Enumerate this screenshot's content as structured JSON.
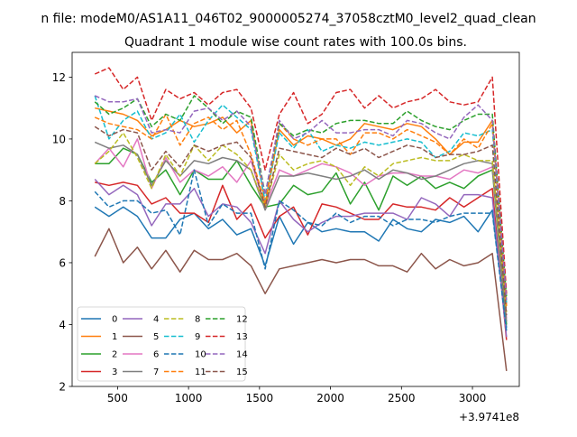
{
  "figure": {
    "suptitle": "n file: modeM0/AS1A11_046T02_9000005274_37058cztM0_level2_quad_clean",
    "title": "Quadrant 1 module wise count rates with 100.0s bins.",
    "offset_label": "+3.9741e8"
  },
  "chart_data": {
    "type": "line",
    "title": "Quadrant 1 module wise count rates with 100.0s bins.",
    "xlabel": "",
    "ylabel": "",
    "x_offset": 397410000,
    "x_offset_label": "+3.9741e8",
    "xlim": [
      180,
      3330
    ],
    "ylim": [
      2,
      12.8
    ],
    "xticks": [
      500,
      1000,
      1500,
      2000,
      2500,
      3000
    ],
    "yticks": [
      2,
      4,
      6,
      8,
      10,
      12
    ],
    "grid": false,
    "legend": {
      "placement": "lower-left",
      "ncol": 4
    },
    "x": [
      340,
      440,
      540,
      640,
      740,
      840,
      940,
      1040,
      1140,
      1240,
      1340,
      1440,
      1540,
      1640,
      1740,
      1840,
      1940,
      2040,
      2140,
      2240,
      2340,
      2440,
      2540,
      2640,
      2740,
      2840,
      2940,
      3040,
      3140,
      3240
    ],
    "series": [
      {
        "name": "0",
        "color": "#1f77b4",
        "dash": "solid",
        "values": [
          7.8,
          7.5,
          7.8,
          7.5,
          6.8,
          6.8,
          7.4,
          7.6,
          7.1,
          7.4,
          6.9,
          7.1,
          5.9,
          7.5,
          6.6,
          7.3,
          7.0,
          7.1,
          7.0,
          7.0,
          6.7,
          7.4,
          7.1,
          7.0,
          7.4,
          7.3,
          7.5,
          7.0,
          7.7,
          3.9
        ]
      },
      {
        "name": "1",
        "color": "#ff7f0e",
        "dash": "solid",
        "values": [
          11.0,
          10.9,
          10.8,
          10.6,
          10.1,
          10.3,
          10.6,
          10.4,
          10.5,
          10.7,
          10.2,
          10.6,
          7.9,
          10.3,
          9.8,
          10.1,
          10.0,
          9.8,
          10.0,
          10.5,
          10.4,
          10.3,
          10.5,
          10.4,
          10.0,
          9.5,
          9.9,
          9.9,
          10.6,
          4.6
        ]
      },
      {
        "name": "2",
        "color": "#2ca02c",
        "dash": "solid",
        "values": [
          9.2,
          9.2,
          9.7,
          9.5,
          8.6,
          9.0,
          8.2,
          9.0,
          8.7,
          8.7,
          9.3,
          8.5,
          7.8,
          7.9,
          8.5,
          8.2,
          8.3,
          8.9,
          7.9,
          8.6,
          7.7,
          8.8,
          8.5,
          8.8,
          8.4,
          8.6,
          8.4,
          8.8,
          9.0,
          4.0
        ]
      },
      {
        "name": "3",
        "color": "#d62728",
        "dash": "solid",
        "values": [
          8.6,
          8.5,
          8.6,
          8.5,
          7.9,
          8.1,
          7.6,
          7.6,
          7.3,
          8.5,
          7.4,
          7.9,
          6.8,
          7.5,
          7.8,
          6.9,
          7.9,
          7.8,
          7.6,
          7.4,
          7.4,
          7.9,
          7.8,
          7.8,
          7.7,
          8.1,
          7.8,
          8.1,
          8.4,
          3.5
        ]
      },
      {
        "name": "4",
        "color": "#9467bd",
        "dash": "solid",
        "values": [
          8.7,
          8.2,
          8.5,
          8.2,
          7.2,
          7.9,
          7.9,
          8.4,
          7.5,
          7.9,
          7.8,
          7.3,
          6.3,
          8.0,
          7.4,
          7.0,
          7.3,
          7.5,
          7.5,
          7.6,
          7.6,
          7.6,
          7.4,
          8.1,
          7.9,
          7.5,
          8.2,
          8.2,
          8.1,
          3.6
        ]
      },
      {
        "name": "5",
        "color": "#8c564b",
        "dash": "solid",
        "values": [
          6.2,
          7.1,
          6.0,
          6.5,
          5.8,
          6.4,
          5.7,
          6.4,
          6.1,
          6.1,
          6.3,
          5.9,
          5.0,
          5.8,
          5.9,
          6.0,
          6.1,
          6.0,
          6.1,
          6.1,
          5.9,
          5.9,
          5.7,
          6.3,
          5.8,
          6.1,
          5.9,
          6.0,
          6.3,
          2.5
        ]
      },
      {
        "name": "6",
        "color": "#e377c2",
        "dash": "solid",
        "values": [
          9.2,
          9.7,
          9.1,
          10.0,
          8.4,
          9.4,
          8.6,
          9.0,
          8.8,
          9.1,
          8.6,
          9.3,
          7.8,
          9.0,
          8.8,
          9.0,
          9.2,
          9.1,
          8.9,
          8.5,
          8.8,
          8.9,
          8.9,
          8.8,
          8.8,
          8.7,
          9.0,
          8.9,
          9.1,
          4.2
        ]
      },
      {
        "name": "7",
        "color": "#7f7f7f",
        "dash": "solid",
        "values": [
          9.9,
          9.7,
          9.8,
          9.5,
          8.5,
          9.3,
          8.8,
          9.3,
          9.2,
          9.4,
          9.3,
          9.0,
          7.7,
          8.8,
          8.8,
          8.9,
          8.8,
          8.7,
          8.8,
          9.0,
          8.7,
          9.0,
          8.9,
          8.7,
          8.8,
          9.0,
          9.2,
          9.3,
          9.2,
          4.1
        ]
      },
      {
        "name": "8",
        "color": "#bcbd22",
        "dash": "dashed",
        "values": [
          9.2,
          9.6,
          10.2,
          9.4,
          8.4,
          9.5,
          8.8,
          9.8,
          9.3,
          9.8,
          9.5,
          9.0,
          7.8,
          9.5,
          9.0,
          9.2,
          9.3,
          9.1,
          8.5,
          9.1,
          8.8,
          9.2,
          9.3,
          9.4,
          9.3,
          9.3,
          9.5,
          9.3,
          9.3,
          4.4
        ]
      },
      {
        "name": "9",
        "color": "#17becf",
        "dash": "dashed",
        "values": [
          11.4,
          10.0,
          10.6,
          10.9,
          10.0,
          10.2,
          10.8,
          9.9,
          10.6,
          11.1,
          10.7,
          10.3,
          8.0,
          10.2,
          9.7,
          10.3,
          9.6,
          9.8,
          9.7,
          9.9,
          9.8,
          9.9,
          10.0,
          9.9,
          9.4,
          9.6,
          10.2,
          10.1,
          10.3,
          4.7
        ]
      },
      {
        "name": "10",
        "color": "#1f77b4",
        "dash": "dashed",
        "values": [
          8.3,
          7.8,
          8.0,
          8.0,
          7.6,
          7.7,
          6.9,
          9.0,
          7.2,
          7.9,
          7.6,
          7.6,
          5.8,
          8.0,
          7.7,
          7.3,
          7.2,
          7.6,
          7.3,
          7.5,
          7.5,
          7.2,
          7.4,
          7.4,
          7.3,
          7.5,
          7.6,
          7.6,
          7.6,
          3.8
        ]
      },
      {
        "name": "11",
        "color": "#ff7f0e",
        "dash": "dashed",
        "values": [
          10.7,
          10.5,
          10.4,
          10.3,
          10.0,
          10.8,
          9.8,
          10.5,
          10.7,
          10.3,
          10.6,
          9.5,
          7.9,
          10.5,
          10.0,
          9.8,
          10.0,
          10.0,
          9.5,
          10.2,
          10.2,
          10.0,
          10.3,
          10.1,
          9.9,
          9.5,
          10.0,
          9.7,
          10.5,
          4.6
        ]
      },
      {
        "name": "12",
        "color": "#2ca02c",
        "dash": "dashed",
        "values": [
          11.2,
          10.8,
          11.0,
          11.3,
          10.4,
          10.8,
          10.6,
          11.4,
          11.0,
          10.5,
          10.9,
          10.7,
          8.2,
          10.5,
          10.1,
          10.3,
          10.2,
          10.5,
          10.6,
          10.6,
          10.5,
          10.5,
          10.9,
          10.6,
          10.4,
          10.3,
          10.6,
          10.8,
          10.8,
          4.9
        ]
      },
      {
        "name": "13",
        "color": "#d62728",
        "dash": "dashed",
        "values": [
          12.1,
          12.3,
          11.6,
          12.0,
          10.6,
          11.6,
          11.3,
          11.5,
          11.1,
          11.5,
          11.6,
          11.0,
          9.0,
          10.8,
          11.5,
          10.5,
          10.8,
          11.5,
          11.6,
          11.0,
          11.4,
          11.0,
          11.2,
          11.3,
          11.6,
          11.2,
          11.1,
          11.2,
          12.0,
          5.0
        ]
      },
      {
        "name": "14",
        "color": "#9467bd",
        "dash": "dashed",
        "values": [
          11.4,
          11.2,
          11.2,
          11.3,
          10.2,
          10.3,
          10.2,
          10.9,
          11.0,
          10.6,
          10.9,
          10.4,
          8.2,
          10.6,
          10.0,
          10.2,
          10.6,
          10.2,
          10.2,
          10.3,
          10.3,
          10.1,
          10.6,
          10.5,
          10.2,
          10.0,
          10.7,
          11.1,
          10.6,
          4.8
        ]
      },
      {
        "name": "15",
        "color": "#8c564b",
        "dash": "dashed",
        "values": [
          10.4,
          10.1,
          10.3,
          10.2,
          9.0,
          9.6,
          9.1,
          9.8,
          9.6,
          9.8,
          9.9,
          9.4,
          7.8,
          9.7,
          9.6,
          9.5,
          9.4,
          9.7,
          9.5,
          9.7,
          9.4,
          9.6,
          9.8,
          9.7,
          9.4,
          9.5,
          9.5,
          9.6,
          9.8,
          4.3
        ]
      }
    ]
  }
}
